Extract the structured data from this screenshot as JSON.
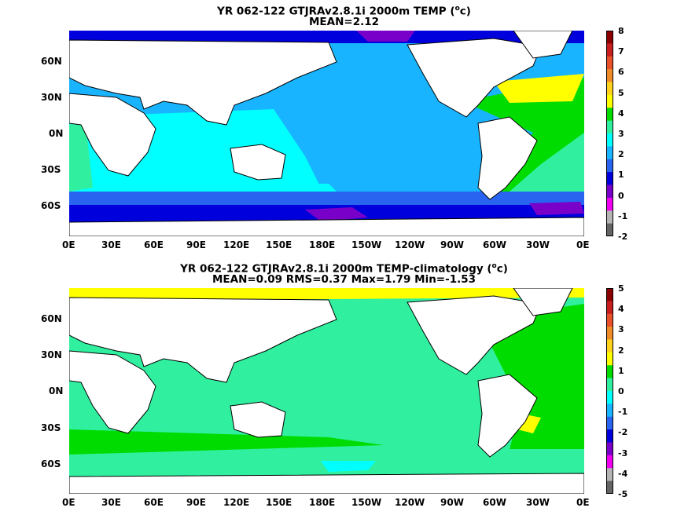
{
  "panels": [
    {
      "title_line1": "YR 062-122 GTJRAv2.8.1i 2000m TEMP (",
      "title_unit": "c)",
      "title_line2": "MEAN=2.12",
      "lat_labels": [
        "60N",
        "30N",
        "0N",
        "30S",
        "60S"
      ],
      "lon_labels": [
        "0E",
        "30E",
        "60E",
        "90E",
        "120E",
        "150E",
        "180E",
        "150W",
        "120W",
        "90W",
        "60W",
        "30W",
        "0E"
      ],
      "colorbar": {
        "labels": [
          "8",
          "7",
          "6",
          "5",
          "4",
          "3",
          "2",
          "1",
          "0",
          "-1",
          "-2"
        ],
        "colors": [
          "#8b0000",
          "#c81e1e",
          "#e8502a",
          "#f08c28",
          "#ffd21e",
          "#ffff00",
          "#00dc00",
          "#30f0a0",
          "#00ffff",
          "#19b4ff",
          "#2864f0",
          "#0000dc",
          "#7800c8",
          "#f000f0",
          "#b4b4b4",
          "#646464"
        ]
      }
    },
    {
      "title_line1": "YR 062-122 GTJRAv2.8.1i 2000m TEMP-climatology (",
      "title_unit": "c)",
      "title_line2": "MEAN=0.09   RMS=0.37   Max=1.79   Min=-1.53",
      "lat_labels": [
        "60N",
        "30N",
        "0N",
        "30S",
        "60S"
      ],
      "lon_labels": [
        "0E",
        "30E",
        "60E",
        "90E",
        "120E",
        "150E",
        "180E",
        "150W",
        "120W",
        "90W",
        "60W",
        "30W",
        "0E"
      ],
      "colorbar": {
        "labels": [
          "5",
          "4",
          "3",
          "2",
          "1",
          "0",
          "-1",
          "-2",
          "-3",
          "-4",
          "-5"
        ],
        "colors": [
          "#8b0000",
          "#c81e1e",
          "#e8502a",
          "#f08c28",
          "#ffd21e",
          "#ffff00",
          "#00dc00",
          "#30f0a0",
          "#00ffff",
          "#19b4ff",
          "#2864f0",
          "#0000dc",
          "#7800c8",
          "#f000f0",
          "#b4b4b4",
          "#646464"
        ]
      }
    }
  ],
  "colors": {
    "land": "#ffffff",
    "coast": "#000000",
    "deep_blue": "#0000dc",
    "purple": "#7800c8",
    "mid_blue": "#19b4ff",
    "cyan": "#00ffff",
    "green": "#00dc00",
    "aqua_green": "#30f0a0",
    "yellow": "#ffff00"
  }
}
